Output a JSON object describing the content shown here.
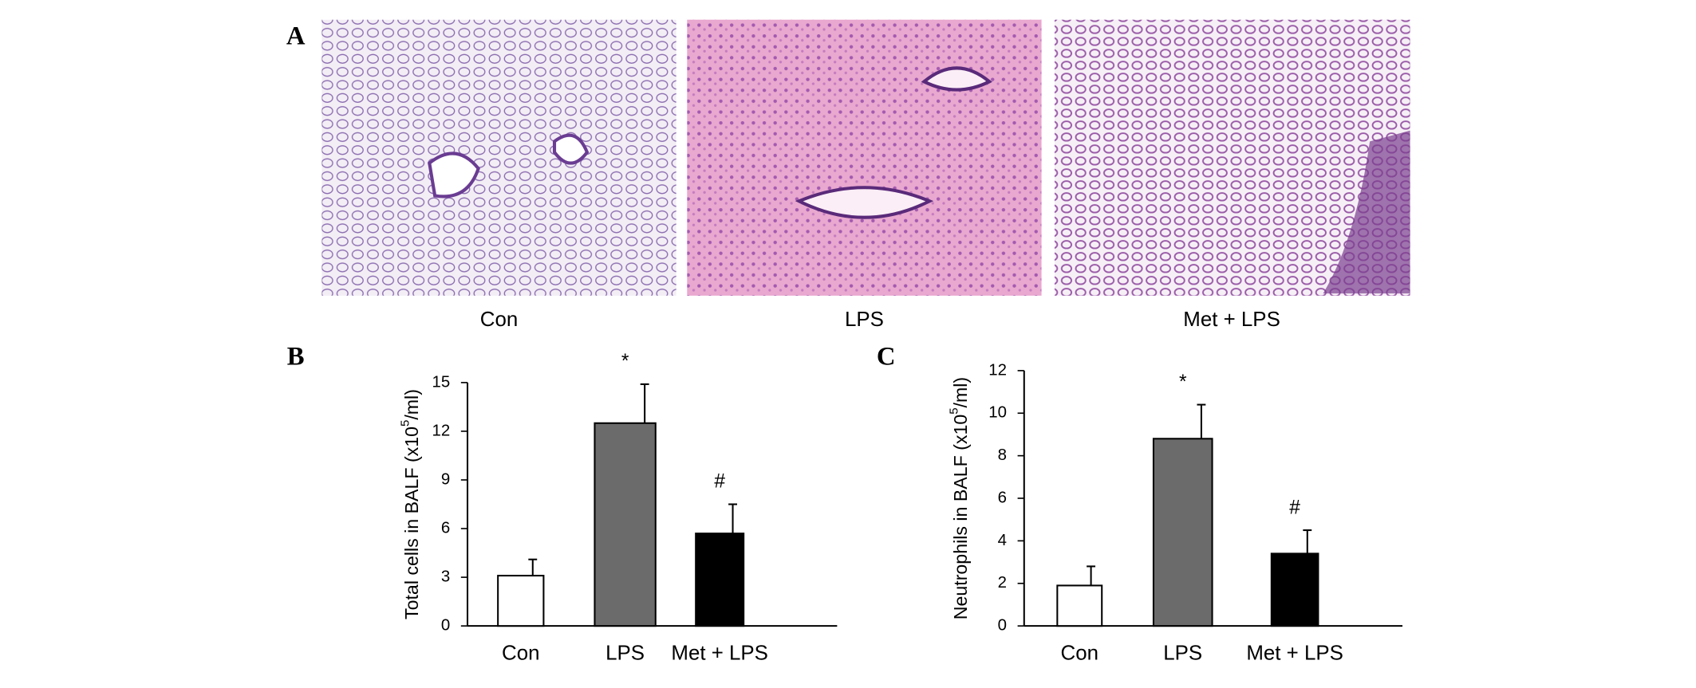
{
  "figure": {
    "panel_labels": [
      "A",
      "B",
      "C"
    ],
    "image_captions": [
      "Con",
      "LPS",
      "Met + LPS"
    ]
  },
  "chart_data": [
    {
      "type": "bar",
      "categories": [
        "Con",
        "LPS",
        "Met + LPS"
      ],
      "y_label": {
        "text": "Total cells in BALF (x10",
        "sup": "5",
        "end": "/ml)"
      },
      "values": [
        3.1,
        12.5,
        5.7
      ],
      "errors": [
        1.0,
        2.4,
        1.8
      ],
      "markers": [
        null,
        "*",
        "#"
      ],
      "colors": [
        "#ffffff",
        "#6b6b6b",
        "#000000"
      ],
      "ylim": [
        0,
        15
      ],
      "yticks": [
        0,
        3,
        6,
        9,
        12,
        15
      ]
    },
    {
      "type": "bar",
      "categories": [
        "Con",
        "LPS",
        "Met + LPS"
      ],
      "y_label": {
        "text": "Neutrophils in BALF (x10",
        "sup": "5",
        "end": "/ml)"
      },
      "values": [
        1.9,
        8.8,
        3.4
      ],
      "errors": [
        0.9,
        1.6,
        1.1
      ],
      "markers": [
        null,
        "*",
        "#"
      ],
      "colors": [
        "#ffffff",
        "#6b6b6b",
        "#000000"
      ],
      "ylim": [
        0,
        12
      ],
      "yticks": [
        0,
        2,
        4,
        6,
        8,
        10,
        12
      ]
    }
  ]
}
